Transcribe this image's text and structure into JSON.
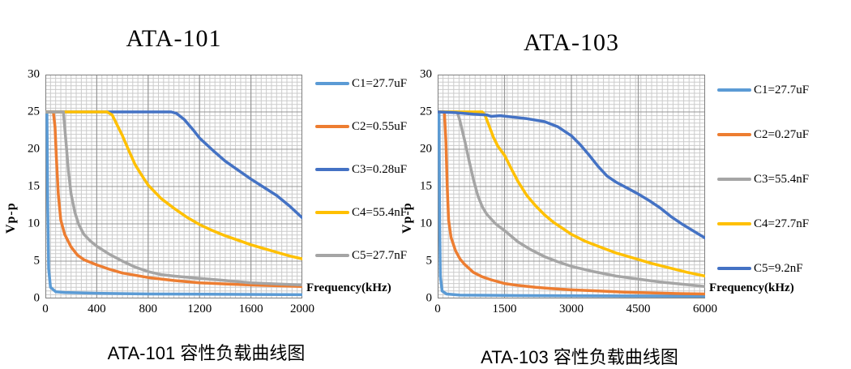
{
  "chart_data": [
    {
      "type": "line",
      "title": "ATA-101",
      "caption": "ATA-101 容性负载曲线图",
      "xlabel": "Frequency(kHz)",
      "ylabel": "Vp-p",
      "xlim": [
        0,
        2000
      ],
      "ylim": [
        0,
        30
      ],
      "xticks": [
        0,
        400,
        800,
        1200,
        1600,
        2000
      ],
      "yticks": [
        0,
        5,
        10,
        15,
        20,
        25,
        30
      ],
      "grid": {
        "minor_cols": 50,
        "minor_rows": 60,
        "minor_color": "#cbcbcb",
        "major_color": "#979797",
        "border_color": "#7f7f7f"
      },
      "legend_position": "right",
      "series": [
        {
          "name": "C1=27.7uF",
          "color": "#5B9BD5",
          "points": [
            [
              0,
              25
            ],
            [
              12,
              25
            ],
            [
              18,
              12
            ],
            [
              25,
              4
            ],
            [
              40,
              1.5
            ],
            [
              80,
              0.9
            ],
            [
              150,
              0.8
            ],
            [
              400,
              0.7
            ],
            [
              800,
              0.6
            ],
            [
              1400,
              0.55
            ],
            [
              2000,
              0.5
            ]
          ]
        },
        {
          "name": "C2=0.55uF",
          "color": "#ED7D31",
          "points": [
            [
              0,
              25
            ],
            [
              62,
              25
            ],
            [
              75,
              23
            ],
            [
              85,
              19
            ],
            [
              100,
              14
            ],
            [
              120,
              10.5
            ],
            [
              150,
              8.6
            ],
            [
              200,
              6.9
            ],
            [
              250,
              5.8
            ],
            [
              300,
              5.2
            ],
            [
              400,
              4.5
            ],
            [
              500,
              3.9
            ],
            [
              600,
              3.4
            ],
            [
              800,
              2.8
            ],
            [
              1000,
              2.4
            ],
            [
              1200,
              2.1
            ],
            [
              1400,
              1.95
            ],
            [
              1600,
              1.8
            ],
            [
              1800,
              1.7
            ],
            [
              2000,
              1.6
            ]
          ]
        },
        {
          "name": "C3=0.28uF",
          "color": "#4472C4",
          "points": [
            [
              0,
              25
            ],
            [
              980,
              25
            ],
            [
              1020,
              24.8
            ],
            [
              1080,
              24
            ],
            [
              1150,
              22.6
            ],
            [
              1200,
              21.5
            ],
            [
              1300,
              19.9
            ],
            [
              1400,
              18.4
            ],
            [
              1500,
              17.2
            ],
            [
              1600,
              16
            ],
            [
              1700,
              14.9
            ],
            [
              1800,
              13.8
            ],
            [
              1900,
              12.4
            ],
            [
              2000,
              10.8
            ]
          ]
        },
        {
          "name": "C4=55.4nF",
          "color": "#FFC000",
          "points": [
            [
              0,
              25
            ],
            [
              480,
              25
            ],
            [
              520,
              24.6
            ],
            [
              560,
              23.2
            ],
            [
              600,
              21.8
            ],
            [
              650,
              19.8
            ],
            [
              700,
              17.9
            ],
            [
              750,
              16.5
            ],
            [
              800,
              15.2
            ],
            [
              900,
              13.4
            ],
            [
              1000,
              12.1
            ],
            [
              1100,
              10.9
            ],
            [
              1200,
              9.9
            ],
            [
              1300,
              9.1
            ],
            [
              1400,
              8.4
            ],
            [
              1500,
              7.8
            ],
            [
              1600,
              7.2
            ],
            [
              1700,
              6.7
            ],
            [
              1800,
              6.2
            ],
            [
              1900,
              5.7
            ],
            [
              2000,
              5.3
            ]
          ]
        },
        {
          "name": "C5=27.7nF",
          "color": "#A5A5A5",
          "points": [
            [
              0,
              25
            ],
            [
              140,
              25
            ],
            [
              160,
              21
            ],
            [
              180,
              17
            ],
            [
              200,
              14
            ],
            [
              230,
              11.5
            ],
            [
              260,
              9.9
            ],
            [
              300,
              8.6
            ],
            [
              350,
              7.7
            ],
            [
              400,
              7
            ],
            [
              500,
              5.9
            ],
            [
              600,
              5
            ],
            [
              700,
              4.2
            ],
            [
              800,
              3.6
            ],
            [
              900,
              3.2
            ],
            [
              1000,
              3
            ],
            [
              1200,
              2.7
            ],
            [
              1400,
              2.4
            ],
            [
              1600,
              2.1
            ],
            [
              1800,
              1.95
            ],
            [
              2000,
              1.8
            ]
          ]
        }
      ]
    },
    {
      "type": "line",
      "title": "ATA-103",
      "caption": "ATA-103 容性负载曲线图",
      "xlabel": "Frequency(kHz)",
      "ylabel": "Vp-p",
      "xlim": [
        0,
        6000
      ],
      "ylim": [
        0,
        30
      ],
      "xticks": [
        0,
        1500,
        3000,
        4500,
        6000
      ],
      "yticks": [
        0,
        5,
        10,
        15,
        20,
        25,
        30
      ],
      "grid": {
        "minor_cols": 50,
        "minor_rows": 60,
        "minor_color": "#cbcbcb",
        "major_color": "#979797",
        "border_color": "#7f7f7f"
      },
      "legend_position": "right",
      "series": [
        {
          "name": "C1=27.7uF",
          "color": "#5B9BD5",
          "points": [
            [
              0,
              25
            ],
            [
              30,
              25
            ],
            [
              45,
              10
            ],
            [
              60,
              3
            ],
            [
              100,
              1
            ],
            [
              200,
              0.6
            ],
            [
              500,
              0.45
            ],
            [
              1500,
              0.4
            ],
            [
              3000,
              0.35
            ],
            [
              6000,
              0.3
            ]
          ]
        },
        {
          "name": "C2=0.27uF",
          "color": "#ED7D31",
          "points": [
            [
              0,
              25
            ],
            [
              150,
              25
            ],
            [
              185,
              21
            ],
            [
              215,
              15
            ],
            [
              245,
              10.5
            ],
            [
              300,
              8.2
            ],
            [
              400,
              6.4
            ],
            [
              500,
              5.3
            ],
            [
              600,
              4.6
            ],
            [
              800,
              3.5
            ],
            [
              1000,
              2.9
            ],
            [
              1200,
              2.5
            ],
            [
              1500,
              2.0
            ],
            [
              1800,
              1.75
            ],
            [
              2200,
              1.5
            ],
            [
              2600,
              1.3
            ],
            [
              3000,
              1.15
            ],
            [
              3600,
              1.0
            ],
            [
              4200,
              0.85
            ],
            [
              4800,
              0.75
            ],
            [
              5400,
              0.65
            ],
            [
              6000,
              0.6
            ]
          ]
        },
        {
          "name": "C3=55.4nF",
          "color": "#A5A5A5",
          "points": [
            [
              0,
              25
            ],
            [
              440,
              25
            ],
            [
              500,
              23.8
            ],
            [
              560,
              22.3
            ],
            [
              620,
              20.8
            ],
            [
              700,
              18.6
            ],
            [
              800,
              16
            ],
            [
              900,
              13.8
            ],
            [
              1000,
              12.3
            ],
            [
              1100,
              11.3
            ],
            [
              1300,
              10
            ],
            [
              1500,
              9.1
            ],
            [
              1800,
              7.6
            ],
            [
              2100,
              6.5
            ],
            [
              2400,
              5.6
            ],
            [
              2700,
              4.9
            ],
            [
              3000,
              4.3
            ],
            [
              3500,
              3.6
            ],
            [
              4000,
              3.0
            ],
            [
              4500,
              2.6
            ],
            [
              5000,
              2.2
            ],
            [
              5500,
              1.9
            ],
            [
              6000,
              1.6
            ]
          ]
        },
        {
          "name": "C4=27.7nF",
          "color": "#FFC000",
          "points": [
            [
              0,
              25
            ],
            [
              1000,
              25
            ],
            [
              1060,
              24.6
            ],
            [
              1150,
              23.2
            ],
            [
              1250,
              21.6
            ],
            [
              1350,
              20.4
            ],
            [
              1500,
              19.2
            ],
            [
              1650,
              17.4
            ],
            [
              1800,
              15.7
            ],
            [
              2000,
              13.8
            ],
            [
              2200,
              12.4
            ],
            [
              2400,
              11.2
            ],
            [
              2600,
              10.2
            ],
            [
              2800,
              9.4
            ],
            [
              3000,
              8.6
            ],
            [
              3300,
              7.7
            ],
            [
              3600,
              7.0
            ],
            [
              4000,
              6.1
            ],
            [
              4400,
              5.4
            ],
            [
              4800,
              4.7
            ],
            [
              5200,
              4.1
            ],
            [
              5600,
              3.5
            ],
            [
              6000,
              3.0
            ]
          ]
        },
        {
          "name": "C5=9.2nF",
          "color": "#4472C4",
          "points": [
            [
              0,
              25
            ],
            [
              400,
              24.9
            ],
            [
              800,
              24.7
            ],
            [
              1100,
              24.6
            ],
            [
              1200,
              24.4
            ],
            [
              1400,
              24.5
            ],
            [
              2000,
              24.1
            ],
            [
              2400,
              23.7
            ],
            [
              2700,
              23.0
            ],
            [
              3000,
              21.8
            ],
            [
              3200,
              20.6
            ],
            [
              3400,
              19.2
            ],
            [
              3600,
              17.7
            ],
            [
              3800,
              16.4
            ],
            [
              4000,
              15.6
            ],
            [
              4250,
              14.8
            ],
            [
              4500,
              14.0
            ],
            [
              4750,
              13.1
            ],
            [
              5000,
              12.1
            ],
            [
              5250,
              10.9
            ],
            [
              5500,
              9.9
            ],
            [
              5750,
              9.0
            ],
            [
              6000,
              8.1
            ]
          ]
        }
      ]
    }
  ]
}
